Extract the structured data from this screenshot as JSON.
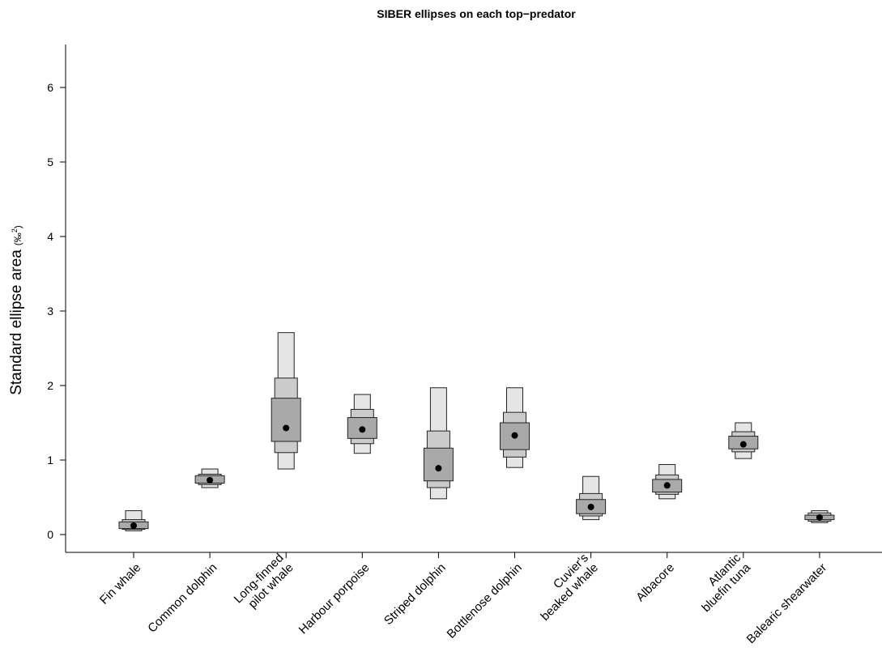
{
  "chart_data": {
    "type": "density_boxplot",
    "title": "SIBER ellipses on each top−predator",
    "ylabel": "Standard ellipse area",
    "ylabel_unit": "(‰²)",
    "ylabel_unit_base": "(‰",
    "ylabel_unit_sup": "2",
    "ylabel_unit_close": ")",
    "ylim": [
      0,
      6.5
    ],
    "yticks": [
      0,
      1,
      2,
      3,
      4,
      5,
      6
    ],
    "ytick_labels": [
      "0",
      "1",
      "2",
      "3",
      "4",
      "5",
      "6"
    ],
    "credible_intervals": [
      "50%",
      "75%",
      "95%"
    ],
    "colors": {
      "ci50": "#a9a9a9",
      "ci75": "#cbcbcb",
      "ci95": "#e5e5e5",
      "mode": "#000000"
    },
    "categories": [
      {
        "label": [
          "Fin whale"
        ],
        "mode": 0.12,
        "ci50": [
          0.08,
          0.17
        ],
        "ci75": [
          0.07,
          0.2
        ],
        "ci95": [
          0.05,
          0.32
        ]
      },
      {
        "label": [
          "Common dolphin"
        ],
        "mode": 0.73,
        "ci50": [
          0.69,
          0.79
        ],
        "ci75": [
          0.67,
          0.81
        ],
        "ci95": [
          0.63,
          0.88
        ]
      },
      {
        "label": [
          "Long-finned",
          "pilot whale"
        ],
        "mode": 1.43,
        "ci50": [
          1.25,
          1.83
        ],
        "ci75": [
          1.1,
          2.1
        ],
        "ci95": [
          0.88,
          2.71
        ]
      },
      {
        "label": [
          "Harbour porpoise"
        ],
        "mode": 1.41,
        "ci50": [
          1.29,
          1.57
        ],
        "ci75": [
          1.22,
          1.68
        ],
        "ci95": [
          1.09,
          1.88
        ]
      },
      {
        "label": [
          "Striped dolphin"
        ],
        "mode": 0.89,
        "ci50": [
          0.72,
          1.16
        ],
        "ci75": [
          0.63,
          1.39
        ],
        "ci95": [
          0.48,
          1.97
        ]
      },
      {
        "label": [
          "Bottlenose dolphin"
        ],
        "mode": 1.33,
        "ci50": [
          1.14,
          1.5
        ],
        "ci75": [
          1.04,
          1.64
        ],
        "ci95": [
          0.9,
          1.97
        ]
      },
      {
        "label": [
          "Cuvier's",
          "beaked whale"
        ],
        "mode": 0.37,
        "ci50": [
          0.28,
          0.47
        ],
        "ci75": [
          0.25,
          0.55
        ],
        "ci95": [
          0.2,
          0.78
        ]
      },
      {
        "label": [
          "Albacore"
        ],
        "mode": 0.66,
        "ci50": [
          0.57,
          0.74
        ],
        "ci75": [
          0.54,
          0.8
        ],
        "ci95": [
          0.48,
          0.94
        ]
      },
      {
        "label": [
          "Atlantic",
          "bluefin tuna"
        ],
        "mode": 1.21,
        "ci50": [
          1.15,
          1.32
        ],
        "ci75": [
          1.11,
          1.38
        ],
        "ci95": [
          1.02,
          1.5
        ]
      },
      {
        "label": [
          "Balearic shearwater"
        ],
        "mode": 0.23,
        "ci50": [
          0.2,
          0.26
        ],
        "ci75": [
          0.18,
          0.29
        ],
        "ci95": [
          0.16,
          0.32
        ]
      }
    ]
  }
}
